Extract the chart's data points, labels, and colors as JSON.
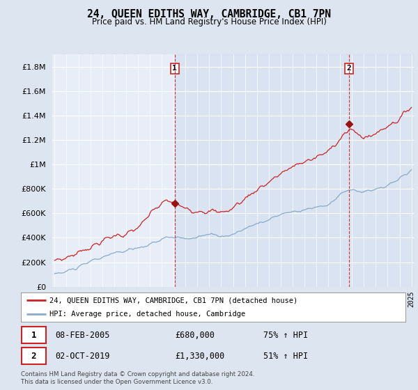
{
  "title": "24, QUEEN EDITHS WAY, CAMBRIDGE, CB1 7PN",
  "subtitle": "Price paid vs. HM Land Registry's House Price Index (HPI)",
  "x_start_year": 1995,
  "x_end_year": 2025,
  "ylim": [
    0,
    1900000
  ],
  "yticks": [
    0,
    200000,
    400000,
    600000,
    800000,
    1000000,
    1200000,
    1400000,
    1600000,
    1800000
  ],
  "ytick_labels": [
    "£0",
    "£200K",
    "£400K",
    "£600K",
    "£800K",
    "£1M",
    "£1.2M",
    "£1.4M",
    "£1.6M",
    "£1.8M"
  ],
  "bg_color": "#dde5f0",
  "plot_bg_color": "#e8eef8",
  "plot_bg_color2": "#d8e2f0",
  "grid_color": "#ffffff",
  "sale1_date": 2005.1,
  "sale1_price": 680000,
  "sale2_date": 2019.75,
  "sale2_price": 1330000,
  "red_line_color": "#cc2222",
  "blue_line_color": "#88aacc",
  "marker_color": "#991111",
  "vline_color": "#cc2222",
  "legend_label_red": "24, QUEEN EDITHS WAY, CAMBRIDGE, CB1 7PN (detached house)",
  "legend_label_blue": "HPI: Average price, detached house, Cambridge",
  "footer": "Contains HM Land Registry data © Crown copyright and database right 2024.\nThis data is licensed under the Open Government Licence v3.0."
}
